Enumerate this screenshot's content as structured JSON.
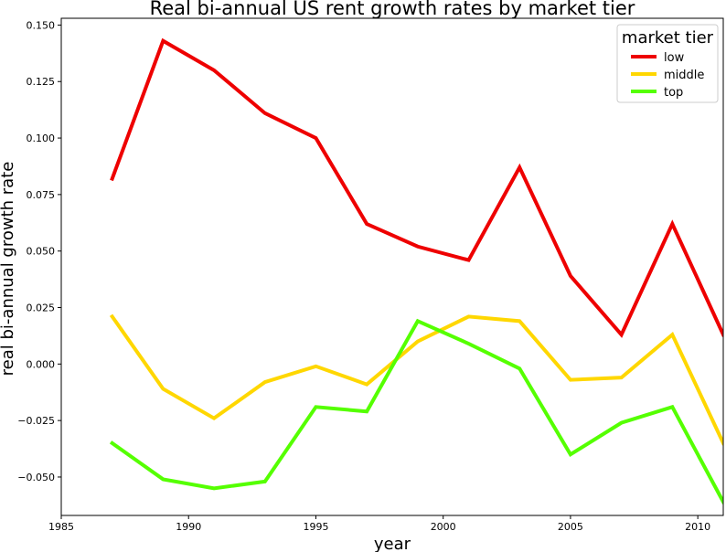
{
  "chart_data": {
    "type": "line",
    "title": "Real bi-annual US rent growth rates by market tier",
    "xlabel": "year",
    "ylabel": "real bi-annual growth rate",
    "xlim": [
      1985,
      2011
    ],
    "ylim": [
      -0.067,
      0.153
    ],
    "xticks": [
      1985,
      1990,
      1995,
      2000,
      2005,
      2010
    ],
    "xtick_labels": [
      "1985",
      "1990",
      "1995",
      "2000",
      "2005",
      "2010"
    ],
    "yticks": [
      -0.05,
      -0.025,
      0.0,
      0.025,
      0.05,
      0.075,
      0.1,
      0.125,
      0.15
    ],
    "ytick_labels": [
      "−0.050",
      "−0.025",
      "0.000",
      "0.025",
      "0.050",
      "0.075",
      "0.100",
      "0.125",
      "0.150"
    ],
    "grid": false,
    "legend": {
      "title": "market tier",
      "placement": "top-right"
    },
    "x": [
      1987,
      1989,
      1991,
      1993,
      1995,
      1997,
      1999,
      2001,
      2003,
      2005,
      2007,
      2009,
      2011
    ],
    "series": [
      {
        "name": "low",
        "color": "#ee0000",
        "values": [
          0.082,
          0.143,
          0.13,
          0.111,
          0.1,
          0.062,
          0.052,
          0.046,
          0.087,
          0.039,
          0.013,
          0.062,
          0.013
        ]
      },
      {
        "name": "middle",
        "color": "#ffd700",
        "values": [
          0.021,
          -0.011,
          -0.024,
          -0.008,
          -0.001,
          -0.009,
          0.01,
          0.021,
          0.019,
          -0.007,
          -0.006,
          0.013,
          -0.035
        ]
      },
      {
        "name": "top",
        "color": "#55ff00",
        "values": [
          -0.035,
          -0.051,
          -0.055,
          -0.052,
          -0.019,
          -0.021,
          0.019,
          0.009,
          -0.002,
          -0.04,
          -0.026,
          -0.019,
          -0.061
        ]
      }
    ]
  }
}
